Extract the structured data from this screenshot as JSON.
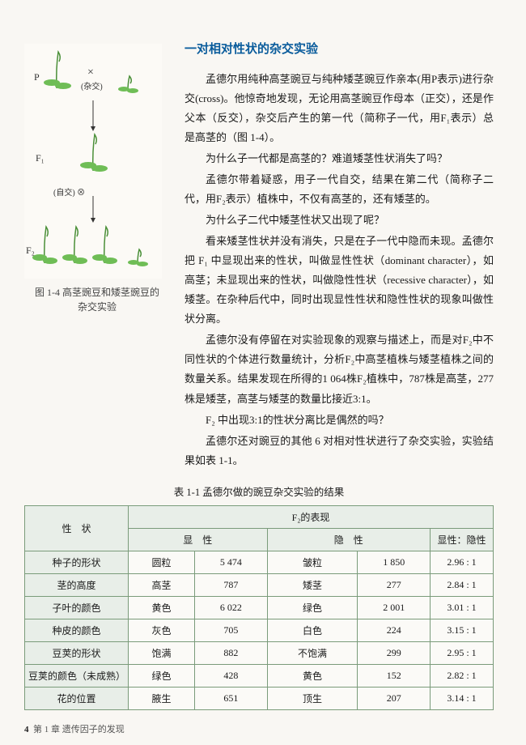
{
  "section_title": "一对相对性状的杂交实验",
  "paragraphs": {
    "p1": "孟德尔用纯种高茎豌豆与纯种矮茎豌豆作亲本(用P表示)进行杂交(cross)。他惊奇地发现，无论用高茎豌豆作母本（正交），还是作父本（反交），杂交后产生的第一代（简称子一代，用F₁表示）总是高茎的（图 1-4）。",
    "p2": "为什么子一代都是高茎的？难道矮茎性状消失了吗？",
    "p3": "孟德尔带着疑惑，用子一代自交，结果在第二代（简称子二代，用F₂表示）植株中，不仅有高茎的，还有矮茎的。",
    "p4": "为什么子二代中矮茎性状又出现了呢？",
    "p5": "看来矮茎性状并没有消失，只是在子一代中隐而未现。孟德尔把 F₁ 中显现出来的性状，叫做显性性状（dominant character），如高茎；未显现出来的性状，叫做隐性性状（recessive character），如矮茎。在杂种后代中，同时出现显性性状和隐性性状的现象叫做性状分离。",
    "p6": "孟德尔没有停留在对实验现象的观察与描述上，而是对F₂中不同性状的个体进行数量统计，分析F₂中高茎植株与矮茎植株之间的数量关系。结果发现在所得的1 064株F₂植株中，787株是高茎，277株是矮茎，高茎与矮茎的数量比接近3:1。",
    "p7": "F₂ 中出现3:1的性状分离比是偶然的吗？",
    "p8": "孟德尔还对豌豆的其他 6 对相对性状进行了杂交实验，实验结果如表 1-1。"
  },
  "figure_caption": "图 1-4  高茎豌豆和矮茎豌豆的\n杂交实验",
  "diagram": {
    "P": "P",
    "cross_symbol": "×",
    "cross_text": "(杂交)",
    "F1": "F₁",
    "self_text": "(自交) ⊗",
    "F2": "F₂",
    "pea_color": "#5fb04a",
    "arrow_color": "#333333"
  },
  "table": {
    "caption": "表 1-1  孟德尔做的豌豆杂交实验的结果",
    "header_trait": "性　状",
    "header_f2": "F₂的表现",
    "header_dominant": "显　性",
    "header_recessive": "隐　性",
    "header_ratio": "显性：隐性",
    "rows": [
      {
        "trait": "种子的形状",
        "dom_name": "圆粒",
        "dom_val": "5 474",
        "rec_name": "皱粒",
        "rec_val": "1 850",
        "ratio": "2.96 : 1"
      },
      {
        "trait": "茎的高度",
        "dom_name": "高茎",
        "dom_val": "787",
        "rec_name": "矮茎",
        "rec_val": "277",
        "ratio": "2.84 : 1"
      },
      {
        "trait": "子叶的颜色",
        "dom_name": "黄色",
        "dom_val": "6 022",
        "rec_name": "绿色",
        "rec_val": "2 001",
        "ratio": "3.01 : 1"
      },
      {
        "trait": "种皮的颜色",
        "dom_name": "灰色",
        "dom_val": "705",
        "rec_name": "白色",
        "rec_val": "224",
        "ratio": "3.15 : 1"
      },
      {
        "trait": "豆荚的形状",
        "dom_name": "饱满",
        "dom_val": "882",
        "rec_name": "不饱满",
        "rec_val": "299",
        "ratio": "2.95 : 1"
      },
      {
        "trait": "豆荚的颜色（未成熟）",
        "dom_name": "绿色",
        "dom_val": "428",
        "rec_name": "黄色",
        "rec_val": "152",
        "ratio": "2.82 : 1"
      },
      {
        "trait": "花的位置",
        "dom_name": "腋生",
        "dom_val": "651",
        "rec_name": "顶生",
        "rec_val": "207",
        "ratio": "3.14 : 1"
      }
    ]
  },
  "footer": {
    "page_num": "4",
    "chapter": "第 1 章  遗传因子的发现"
  }
}
